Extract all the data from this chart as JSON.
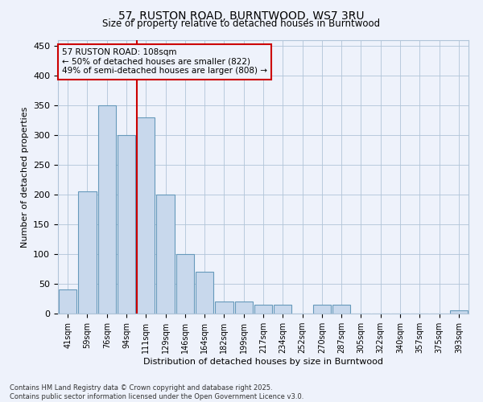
{
  "title_line1": "57, RUSTON ROAD, BURNTWOOD, WS7 3RU",
  "title_line2": "Size of property relative to detached houses in Burntwood",
  "xlabel": "Distribution of detached houses by size in Burntwood",
  "ylabel": "Number of detached properties",
  "categories": [
    "41sqm",
    "59sqm",
    "76sqm",
    "94sqm",
    "111sqm",
    "129sqm",
    "146sqm",
    "164sqm",
    "182sqm",
    "199sqm",
    "217sqm",
    "234sqm",
    "252sqm",
    "270sqm",
    "287sqm",
    "305sqm",
    "322sqm",
    "340sqm",
    "357sqm",
    "375sqm",
    "393sqm"
  ],
  "values": [
    40,
    205,
    350,
    300,
    330,
    200,
    100,
    70,
    20,
    20,
    15,
    15,
    0,
    15,
    15,
    0,
    0,
    0,
    0,
    0,
    5
  ],
  "bar_color": "#c8d8ec",
  "bar_edge_color": "#6699bb",
  "vline_color": "#cc0000",
  "annotation_text": "57 RUSTON ROAD: 108sqm\n← 50% of detached houses are smaller (822)\n49% of semi-detached houses are larger (808) →",
  "annotation_box_edgecolor": "#cc0000",
  "bg_color": "#eef2fb",
  "grid_color": "#b0c4d8",
  "ylim": [
    0,
    460
  ],
  "yticks": [
    0,
    50,
    100,
    150,
    200,
    250,
    300,
    350,
    400,
    450
  ],
  "footer_line1": "Contains HM Land Registry data © Crown copyright and database right 2025.",
  "footer_line2": "Contains public sector information licensed under the Open Government Licence v3.0."
}
